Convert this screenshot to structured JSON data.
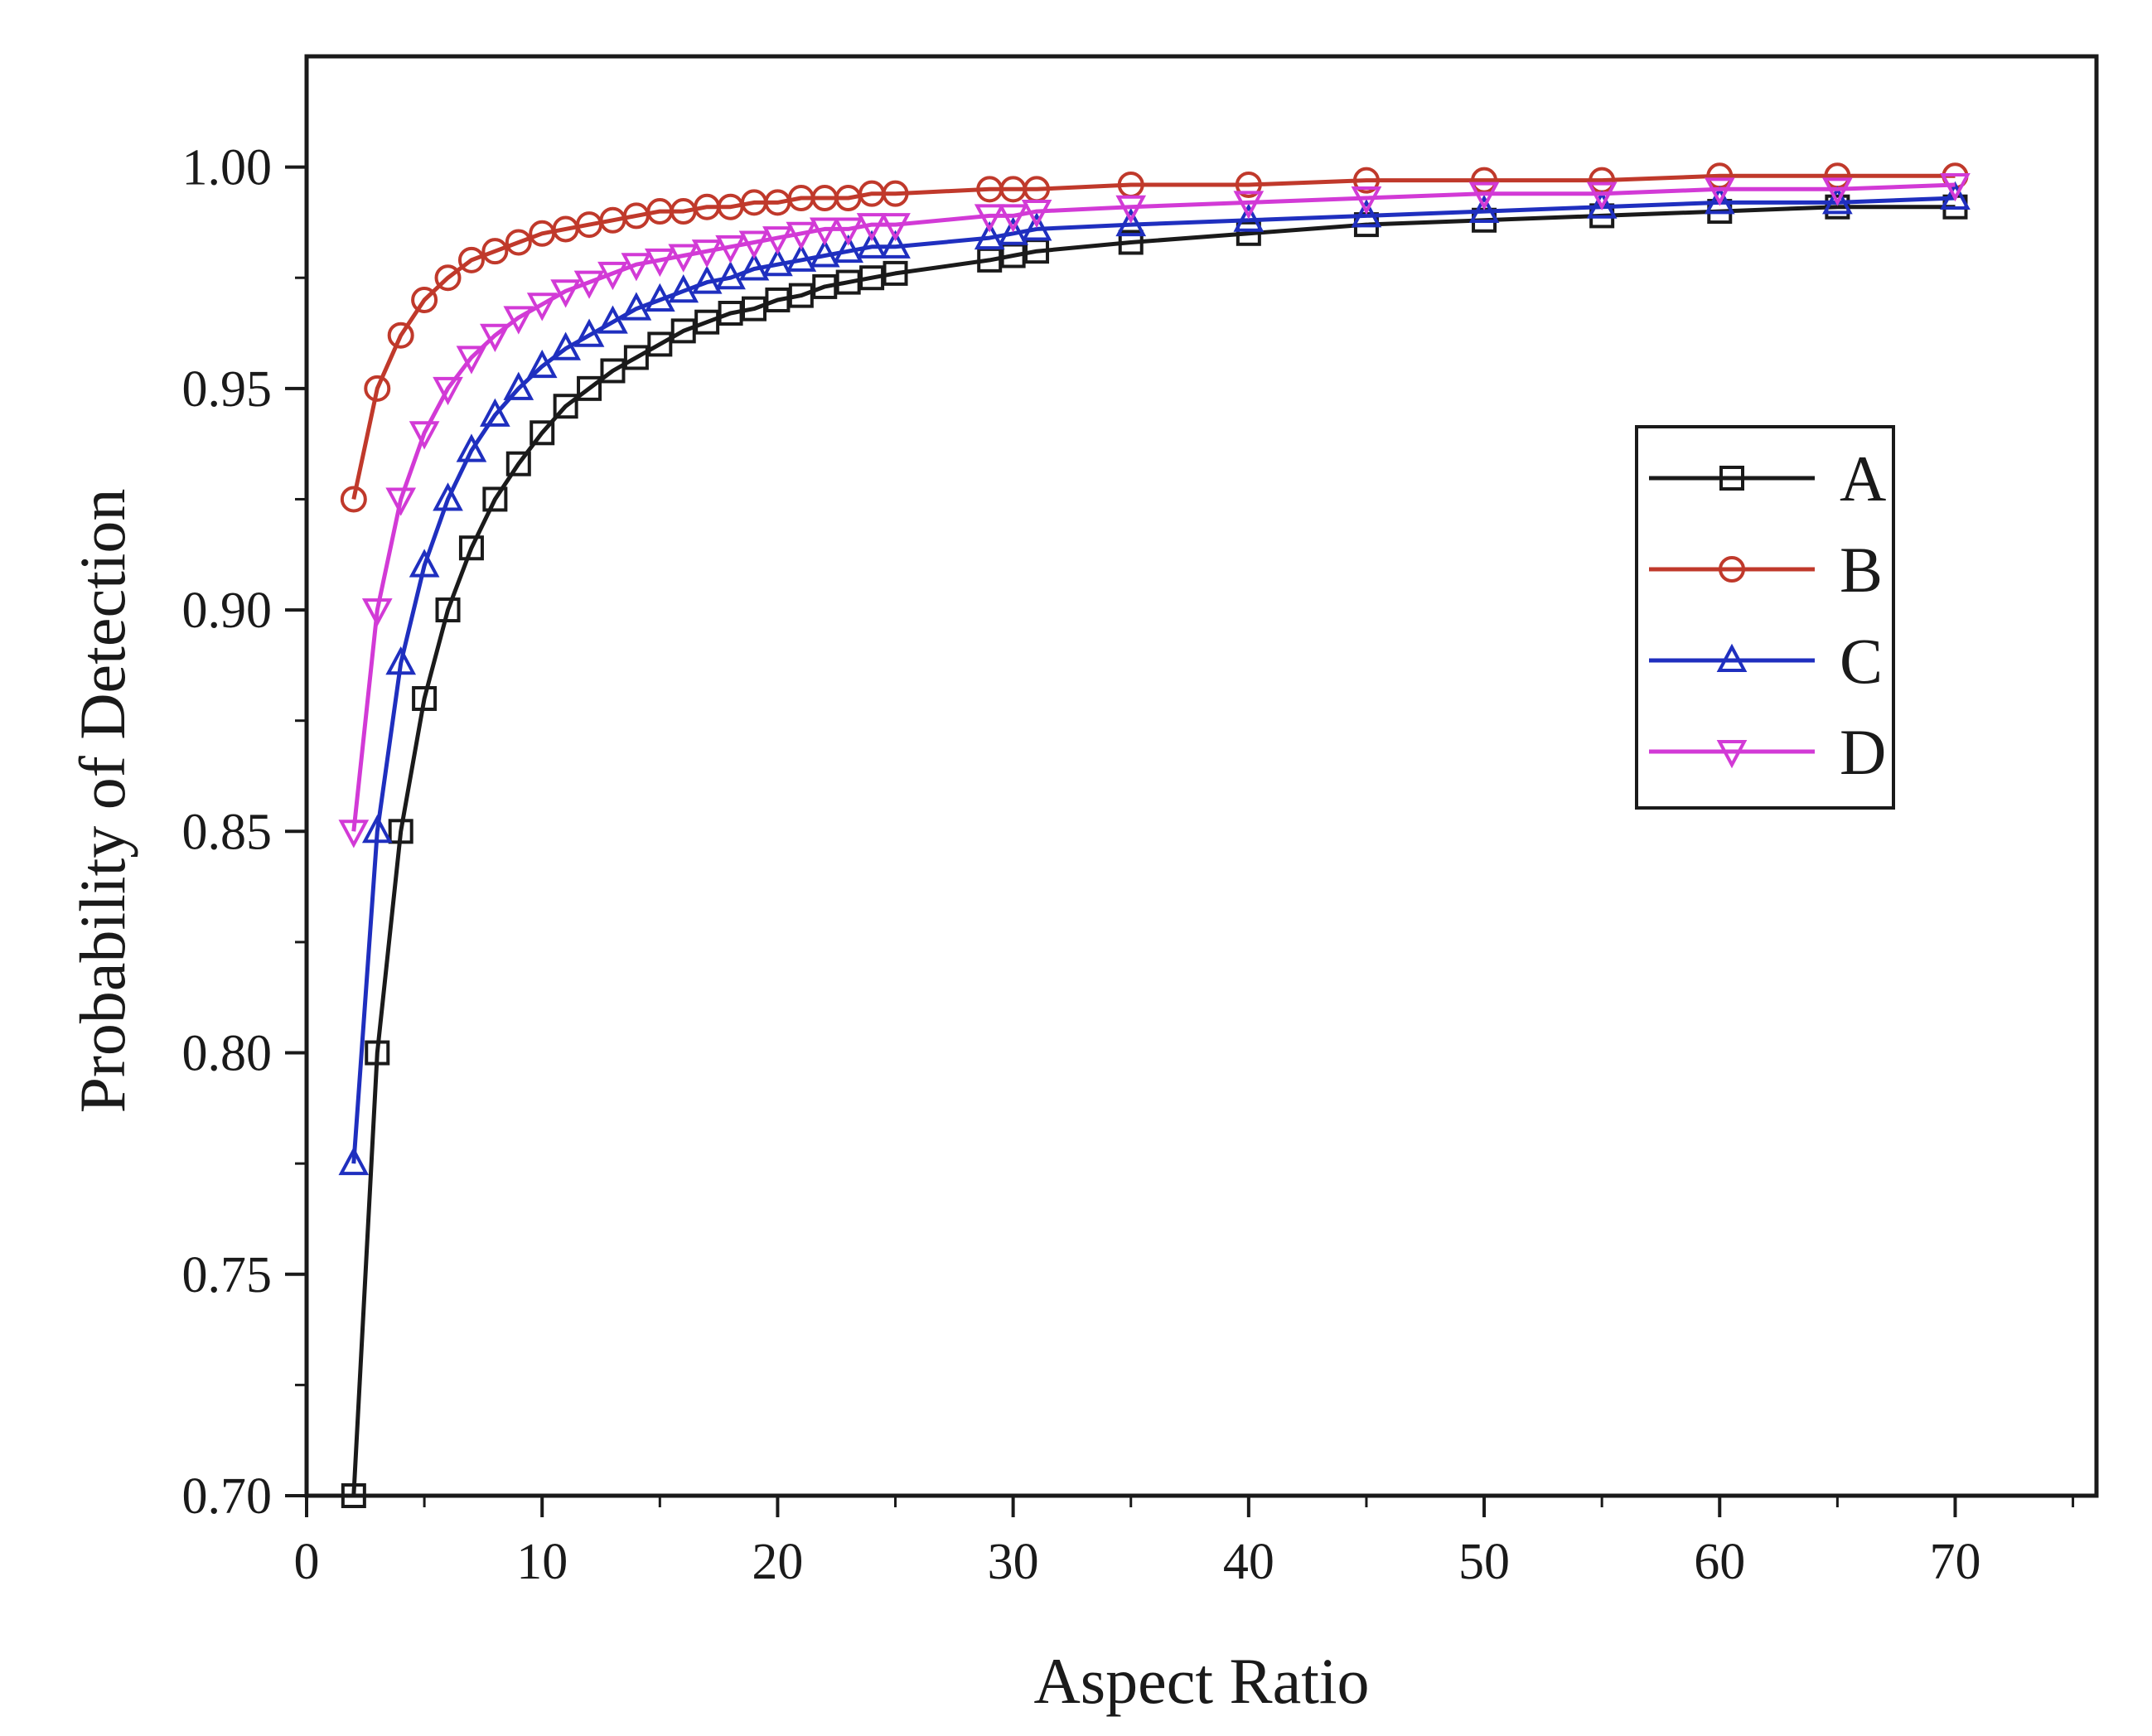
{
  "chart_data": {
    "type": "line",
    "xlabel": "Aspect Ratio",
    "ylabel": "Probability of  Detection",
    "xlim": [
      0,
      76
    ],
    "ylim": [
      0.7,
      1.025
    ],
    "xticks": [
      0,
      10,
      20,
      30,
      40,
      50,
      60,
      70
    ],
    "yticks": [
      0.7,
      0.75,
      0.8,
      0.85,
      0.9,
      0.95,
      1.0
    ],
    "xtick_labels": [
      "0",
      "10",
      "20",
      "30",
      "40",
      "50",
      "60",
      "70"
    ],
    "ytick_labels": [
      "0.70",
      "0.75",
      "0.80",
      "0.85",
      "0.90",
      "0.95",
      "1.00"
    ],
    "grid": false,
    "legend_position": "right",
    "x": [
      2,
      3,
      4,
      5,
      6,
      7,
      8,
      9,
      10,
      11,
      12,
      13,
      14,
      15,
      16,
      17,
      18,
      19,
      20,
      21,
      22,
      23,
      24,
      25,
      29,
      30,
      31,
      35,
      40,
      45,
      50,
      55,
      60,
      65,
      70
    ],
    "series": [
      {
        "name": "A",
        "color": "#1a1a1a",
        "marker": "square",
        "values": [
          0.7,
          0.8,
          0.85,
          0.88,
          0.9,
          0.914,
          0.925,
          0.933,
          0.94,
          0.946,
          0.95,
          0.954,
          0.957,
          0.96,
          0.963,
          0.965,
          0.967,
          0.968,
          0.97,
          0.971,
          0.973,
          0.974,
          0.975,
          0.976,
          0.979,
          0.98,
          0.981,
          0.983,
          0.985,
          0.987,
          0.988,
          0.989,
          0.99,
          0.991,
          0.991
        ]
      },
      {
        "name": "B",
        "color": "#c0392b",
        "marker": "circle",
        "values": [
          0.925,
          0.95,
          0.962,
          0.97,
          0.975,
          0.979,
          0.981,
          0.983,
          0.985,
          0.986,
          0.987,
          0.988,
          0.989,
          0.99,
          0.99,
          0.991,
          0.991,
          0.992,
          0.992,
          0.993,
          0.993,
          0.993,
          0.994,
          0.994,
          0.995,
          0.995,
          0.995,
          0.996,
          0.996,
          0.997,
          0.997,
          0.997,
          0.998,
          0.998,
          0.998
        ]
      },
      {
        "name": "C",
        "color": "#1f2fbf",
        "marker": "triangle-up",
        "values": [
          0.775,
          0.85,
          0.888,
          0.91,
          0.925,
          0.936,
          0.944,
          0.95,
          0.955,
          0.959,
          0.962,
          0.965,
          0.968,
          0.97,
          0.972,
          0.974,
          0.975,
          0.977,
          0.978,
          0.979,
          0.98,
          0.981,
          0.982,
          0.982,
          0.984,
          0.985,
          0.986,
          0.987,
          0.988,
          0.989,
          0.99,
          0.991,
          0.992,
          0.992,
          0.993
        ]
      },
      {
        "name": "D",
        "color": "#d23ad6",
        "marker": "triangle-down",
        "values": [
          0.85,
          0.9,
          0.925,
          0.94,
          0.95,
          0.957,
          0.962,
          0.966,
          0.969,
          0.972,
          0.974,
          0.976,
          0.978,
          0.979,
          0.98,
          0.981,
          0.982,
          0.983,
          0.984,
          0.985,
          0.986,
          0.986,
          0.987,
          0.987,
          0.989,
          0.989,
          0.99,
          0.991,
          0.992,
          0.993,
          0.994,
          0.994,
          0.995,
          0.995,
          0.996
        ]
      }
    ]
  }
}
